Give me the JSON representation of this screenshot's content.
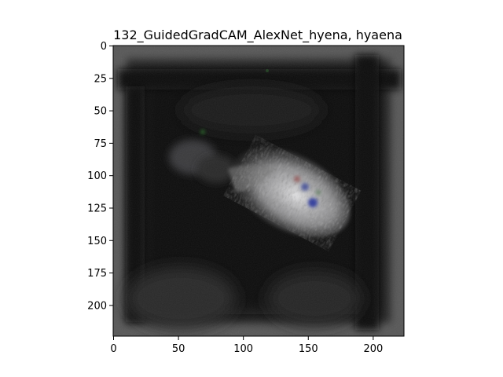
{
  "figure": {
    "title": "132_GuidedGradCAM_AlexNet_hyena, hyaena"
  },
  "chart_data": {
    "type": "heatmap",
    "title": "132_GuidedGradCAM_AlexNet_hyena, hyaena",
    "xlabel": "",
    "ylabel": "",
    "xlim": [
      0,
      224
    ],
    "ylim": [
      224,
      0
    ],
    "x_ticks": [
      0,
      50,
      100,
      150,
      200
    ],
    "y_ticks": [
      0,
      25,
      50,
      75,
      100,
      125,
      150,
      175,
      200
    ],
    "colors": {
      "background_dark": "#0c0c0c",
      "border_gray": "#5a5a5a",
      "highlight": "#e8e8ec",
      "accent_blue": "#1a2a9a"
    }
  }
}
